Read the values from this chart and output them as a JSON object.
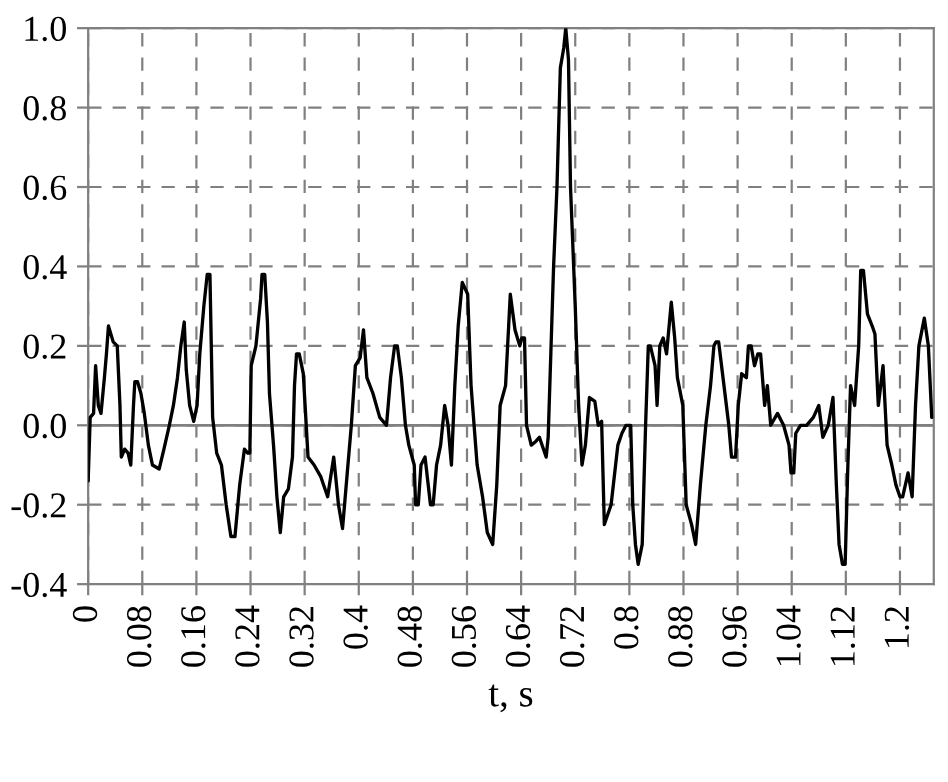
{
  "chart_data": {
    "type": "line",
    "xlabel": "t, s",
    "grid": true,
    "line_style": "solid",
    "marker": "none",
    "xlim": [
      0,
      1.25
    ],
    "ylim": [
      -0.4,
      1.0
    ],
    "xticks": [
      0,
      0.08,
      0.16,
      0.24,
      0.32,
      0.4,
      0.48,
      0.56,
      0.64,
      0.72,
      0.8,
      0.88,
      0.96,
      1.04,
      1.12,
      1.2
    ],
    "yticks": [
      {
        "value": -0.4,
        "label": "-0.4"
      },
      {
        "value": -0.2,
        "label": "-0.2"
      },
      {
        "value": 0,
        "label": "0.0"
      },
      {
        "value": 0.2,
        "label": "0.2"
      },
      {
        "value": 0.4,
        "label": "0.4"
      },
      {
        "value": 0.6,
        "label": "0.6"
      },
      {
        "value": 0.8,
        "label": "0.8"
      },
      {
        "value": 1.0,
        "label": "1.0"
      }
    ],
    "ref_lines": [
      {
        "axis": "y",
        "value": 0,
        "color": "#808080",
        "line_style": "solid"
      }
    ],
    "x": [
      0,
      0.003,
      0.008,
      0.011,
      0.015,
      0.019,
      0.024,
      0.027,
      0.03,
      0.037,
      0.043,
      0.047,
      0.049,
      0.054,
      0.059,
      0.063,
      0.067,
      0.069,
      0.073,
      0.078,
      0.083,
      0.089,
      0.095,
      0.105,
      0.112,
      0.12,
      0.126,
      0.132,
      0.137,
      0.142,
      0.145,
      0.15,
      0.156,
      0.161,
      0.165,
      0.171,
      0.176,
      0.18,
      0.184,
      0.19,
      0.197,
      0.204,
      0.211,
      0.217,
      0.224,
      0.231,
      0.236,
      0.239,
      0.241,
      0.248,
      0.255,
      0.257,
      0.261,
      0.265,
      0.268,
      0.274,
      0.279,
      0.284,
      0.289,
      0.296,
      0.302,
      0.305,
      0.308,
      0.312,
      0.318,
      0.325,
      0.334,
      0.344,
      0.354,
      0.363,
      0.37,
      0.376,
      0.383,
      0.389,
      0.395,
      0.402,
      0.407,
      0.412,
      0.421,
      0.431,
      0.441,
      0.447,
      0.453,
      0.457,
      0.463,
      0.469,
      0.474,
      0.482,
      0.484,
      0.488,
      0.492,
      0.498,
      0.506,
      0.51,
      0.515,
      0.521,
      0.527,
      0.532,
      0.537,
      0.542,
      0.547,
      0.553,
      0.561,
      0.566,
      0.575,
      0.583,
      0.59,
      0.598,
      0.604,
      0.609,
      0.617,
      0.624,
      0.631,
      0.638,
      0.641,
      0.645,
      0.648,
      0.655,
      0.662,
      0.667,
      0.677,
      0.68,
      0.688,
      0.693,
      0.698,
      0.703,
      0.706,
      0.71,
      0.713,
      0.72,
      0.725,
      0.73,
      0.735,
      0.741,
      0.749,
      0.754,
      0.759,
      0.763,
      0.773,
      0.783,
      0.789,
      0.795,
      0.802,
      0.805,
      0.809,
      0.813,
      0.819,
      0.824,
      0.828,
      0.831,
      0.838,
      0.841,
      0.845,
      0.85,
      0.855,
      0.862,
      0.867,
      0.871,
      0.879,
      0.884,
      0.892,
      0.898,
      0.905,
      0.913,
      0.92,
      0.925,
      0.928,
      0.932,
      0.937,
      0.947,
      0.951,
      0.957,
      0.961,
      0.966,
      0.973,
      0.976,
      0.98,
      0.985,
      0.99,
      0.994,
      1.0,
      1.004,
      1.009,
      1.019,
      1.028,
      1.036,
      1.039,
      1.043,
      1.046,
      1.053,
      1.062,
      1.072,
      1.08,
      1.086,
      1.094,
      1.101,
      1.106,
      1.11,
      1.115,
      1.119,
      1.123,
      1.127,
      1.133,
      1.139,
      1.142,
      1.146,
      1.152,
      1.159,
      1.163,
      1.168,
      1.175,
      1.181,
      1.188,
      1.194,
      1.2,
      1.204,
      1.212,
      1.218,
      1.223,
      1.228,
      1.236,
      1.242,
      1.247
    ],
    "values": [
      -0.14,
      0.02,
      0.03,
      0.15,
      0.05,
      0.03,
      0.12,
      0.18,
      0.25,
      0.21,
      0.2,
      0.05,
      -0.08,
      -0.06,
      -0.07,
      -0.1,
      0.05,
      0.11,
      0.11,
      0.08,
      0.03,
      -0.05,
      -0.1,
      -0.11,
      -0.06,
      0.0,
      0.05,
      0.12,
      0.2,
      0.26,
      0.14,
      0.05,
      0.01,
      0.05,
      0.18,
      0.3,
      0.38,
      0.38,
      0.02,
      -0.07,
      -0.1,
      -0.2,
      -0.28,
      -0.28,
      -0.15,
      -0.06,
      -0.07,
      -0.07,
      0.15,
      0.2,
      0.32,
      0.38,
      0.38,
      0.26,
      0.08,
      -0.05,
      -0.18,
      -0.27,
      -0.18,
      -0.16,
      -0.08,
      0.1,
      0.18,
      0.18,
      0.13,
      -0.08,
      -0.1,
      -0.13,
      -0.18,
      -0.08,
      -0.2,
      -0.26,
      -0.12,
      0.0,
      0.15,
      0.17,
      0.24,
      0.12,
      0.08,
      0.02,
      0.0,
      0.12,
      0.2,
      0.2,
      0.12,
      0.0,
      -0.05,
      -0.1,
      -0.2,
      -0.2,
      -0.1,
      -0.08,
      -0.2,
      -0.2,
      -0.1,
      -0.05,
      0.05,
      0.0,
      -0.1,
      0.1,
      0.25,
      0.36,
      0.33,
      0.1,
      -0.1,
      -0.18,
      -0.27,
      -0.3,
      -0.15,
      0.05,
      0.1,
      0.33,
      0.24,
      0.2,
      0.22,
      0.22,
      0.0,
      -0.05,
      -0.04,
      -0.03,
      -0.08,
      -0.03,
      0.4,
      0.6,
      0.9,
      0.95,
      1.0,
      0.92,
      0.6,
      0.3,
      0.05,
      -0.1,
      -0.05,
      0.07,
      0.06,
      0.0,
      0.01,
      -0.25,
      -0.2,
      -0.05,
      -0.02,
      0.0,
      0.0,
      -0.2,
      -0.3,
      -0.35,
      -0.3,
      0.0,
      0.2,
      0.2,
      0.15,
      0.05,
      0.2,
      0.22,
      0.18,
      0.31,
      0.22,
      0.12,
      0.05,
      -0.2,
      -0.25,
      -0.3,
      -0.15,
      0.0,
      0.1,
      0.2,
      0.21,
      0.21,
      0.14,
      0.0,
      -0.08,
      -0.08,
      0.05,
      0.13,
      0.12,
      0.2,
      0.2,
      0.15,
      0.18,
      0.18,
      0.05,
      0.1,
      0.0,
      0.03,
      0.0,
      -0.05,
      -0.12,
      -0.12,
      -0.02,
      0.0,
      0.0,
      0.02,
      0.05,
      -0.03,
      0.0,
      0.07,
      -0.15,
      -0.3,
      -0.35,
      -0.35,
      -0.1,
      0.1,
      0.05,
      0.2,
      0.39,
      0.39,
      0.28,
      0.25,
      0.23,
      0.05,
      0.15,
      -0.05,
      -0.1,
      -0.15,
      -0.18,
      -0.18,
      -0.12,
      -0.18,
      0.05,
      0.2,
      0.27,
      0.2,
      0.02
    ],
    "color": "#000000"
  }
}
